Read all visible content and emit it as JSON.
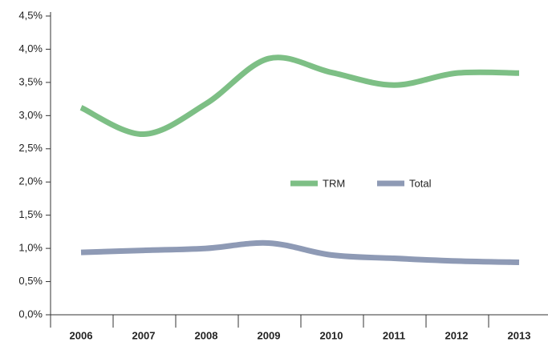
{
  "chart_data": {
    "type": "line",
    "categories": [
      "2006",
      "2007",
      "2008",
      "2009",
      "2010",
      "2011",
      "2012",
      "2013"
    ],
    "series": [
      {
        "name": "TRM",
        "color": "#7dbf85",
        "values": [
          3.12,
          2.72,
          3.18,
          3.86,
          3.65,
          3.46,
          3.64,
          3.64
        ]
      },
      {
        "name": "Total",
        "color": "#8e9ab5",
        "values": [
          0.94,
          0.97,
          1.0,
          1.08,
          0.9,
          0.85,
          0.81,
          0.79
        ]
      }
    ],
    "ylim": [
      0,
      4.5
    ],
    "yticks": [
      {
        "value": 0,
        "label": "0,0%"
      },
      {
        "value": 0.5,
        "label": "0,5%"
      },
      {
        "value": 1,
        "label": "1,0%"
      },
      {
        "value": 1.5,
        "label": "1,5%"
      },
      {
        "value": 2,
        "label": "2,0%"
      },
      {
        "value": 2.5,
        "label": "2,5%"
      },
      {
        "value": 3,
        "label": "3,0%"
      },
      {
        "value": 3.5,
        "label": "3,5%"
      },
      {
        "value": 4,
        "label": "4,0%"
      },
      {
        "value": 4.5,
        "label": "4,5%"
      }
    ],
    "grid": false
  }
}
